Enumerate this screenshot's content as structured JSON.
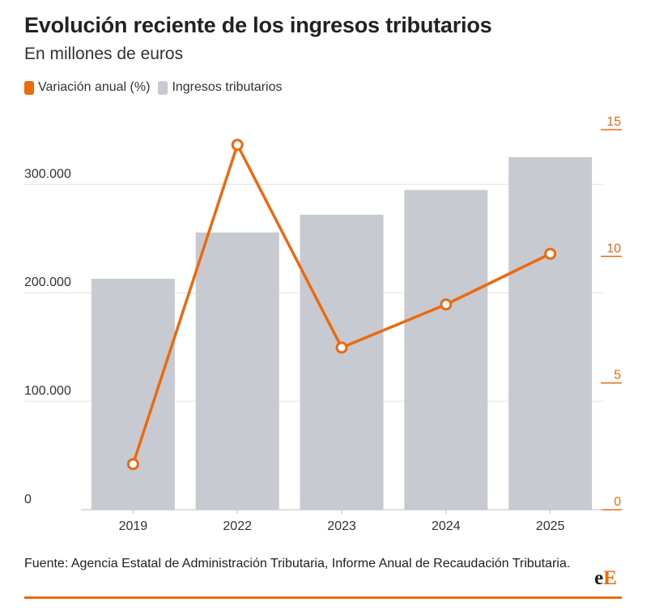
{
  "header": {
    "title": "Evolución reciente de los ingresos tributarios",
    "subtitle": "En millones de euros"
  },
  "legend": {
    "line_label": "Variación anual (%)",
    "bar_label": "Ingresos tributarios"
  },
  "colors": {
    "line": "#ec6a0f",
    "bars": "#c7cad1",
    "grid": "#e2e2e2",
    "axis_text": "#333333"
  },
  "chart_data": {
    "type": "bar",
    "categories": [
      "2019",
      "2022",
      "2023",
      "2024",
      "2025"
    ],
    "series": [
      {
        "name": "Ingresos tributarios",
        "type": "bar",
        "axis": "left",
        "values": [
          212800,
          255500,
          271900,
          294700,
          325000
        ]
      },
      {
        "name": "Variación anual (%)",
        "type": "line",
        "axis": "right",
        "values": [
          1.8,
          14.4,
          6.4,
          8.1,
          10.1
        ]
      }
    ],
    "y_left": {
      "ticks": [
        0,
        100000,
        200000,
        300000
      ],
      "tick_labels": [
        "0",
        "100.000",
        "200.000",
        "300.000"
      ],
      "ylim": [
        0,
        360000
      ]
    },
    "y_right": {
      "ticks": [
        0,
        5,
        10,
        15
      ],
      "tick_labels": [
        "0",
        "5",
        "10",
        "15"
      ],
      "ylim": [
        0,
        15
      ]
    },
    "grid": true,
    "legend_position": "top-left"
  },
  "footer": {
    "source": "Fuente: Agencia Estatal de Administración Tributaria, Informe Anual de Recaudación Tributaria.",
    "logo_letters": [
      "e",
      "E"
    ]
  }
}
